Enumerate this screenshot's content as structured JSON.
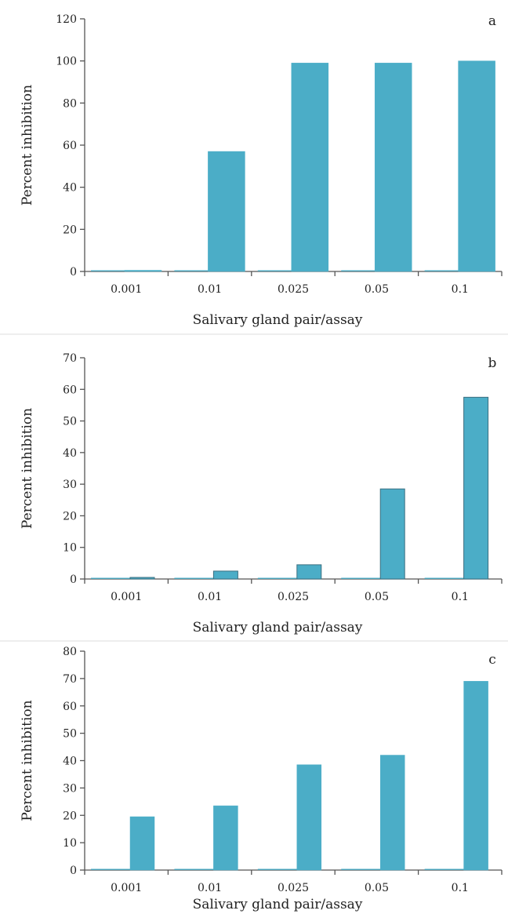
{
  "chart_data": [
    {
      "type": "bar",
      "panel_label": "a",
      "categories": [
        "0.001",
        "0.01",
        "0.025",
        "0.05",
        "0.1"
      ],
      "values": [
        0,
        57,
        99,
        99,
        100
      ],
      "xlabel": "Salivary gland pair/assay",
      "ylabel": "Percent inhibition",
      "ylim": [
        0,
        120
      ],
      "yticks": [
        0,
        20,
        40,
        60,
        80,
        100,
        120
      ],
      "bar_color": "#4badc7",
      "grid": false,
      "legend": "none"
    },
    {
      "type": "bar",
      "panel_label": "b",
      "categories": [
        "0.001",
        "0.01",
        "0.025",
        "0.05",
        "0.1"
      ],
      "values": [
        0.5,
        2.5,
        4.5,
        28.5,
        57.5
      ],
      "xlabel": "Salivary gland pair/assay",
      "ylabel": "Percent inhibition",
      "ylim": [
        0,
        70
      ],
      "yticks": [
        0,
        10,
        20,
        30,
        40,
        50,
        60,
        70
      ],
      "bar_color": "#4badc7",
      "grid": false,
      "legend": "none"
    },
    {
      "type": "bar",
      "panel_label": "c",
      "categories": [
        "0.001",
        "0.01",
        "0.025",
        "0.05",
        "0.1"
      ],
      "values": [
        19.5,
        23.5,
        38.5,
        42,
        69
      ],
      "xlabel": "Salivary gland pair/assay",
      "ylabel": "Percent inhibition",
      "ylim": [
        0,
        80
      ],
      "yticks": [
        0,
        10,
        20,
        30,
        40,
        50,
        60,
        70,
        80
      ],
      "bar_color": "#4badc7",
      "grid": false,
      "legend": "none"
    }
  ]
}
